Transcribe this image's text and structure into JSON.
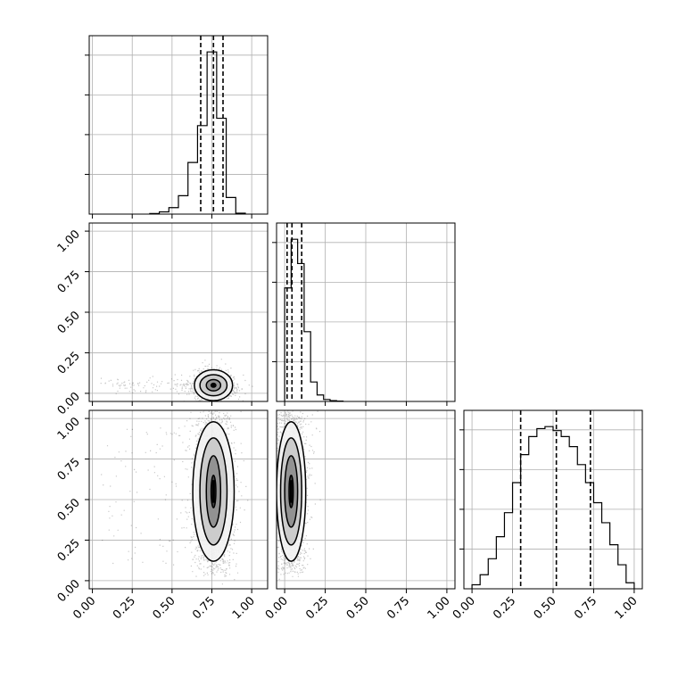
{
  "chart_data": {
    "type": "corner",
    "parameters": [
      "",
      "",
      ""
    ],
    "axis_ticks": [
      0.0,
      0.25,
      0.5,
      0.75,
      1.0
    ],
    "tick_labels": [
      "0.00",
      "0.25",
      "0.50",
      "0.75",
      "1.00"
    ],
    "grid": true,
    "histogram_style": "step",
    "quantiles": [
      0.16,
      0.5,
      0.84
    ],
    "diagonal": [
      {
        "param_index": 0,
        "range": [
          -0.02,
          1.1
        ],
        "quantile_values": [
          0.68,
          0.76,
          0.82
        ],
        "bin_edges": [
          0.36,
          0.42,
          0.48,
          0.54,
          0.6,
          0.66,
          0.72,
          0.78,
          0.84,
          0.9,
          0.96
        ],
        "counts": [
          0.3,
          1.2,
          3.5,
          10,
          28,
          48,
          88,
          52,
          9,
          0.5
        ]
      },
      {
        "param_index": 1,
        "range": [
          -0.05,
          1.05
        ],
        "quantile_values": [
          0.015,
          0.045,
          0.105
        ],
        "bin_edges": [
          0.0,
          0.04,
          0.08,
          0.12,
          0.16,
          0.2,
          0.24,
          0.28,
          0.32,
          0.36
        ],
        "counts": [
          70,
          100,
          85,
          43,
          12,
          4,
          1.2,
          0.5,
          0.2
        ]
      },
      {
        "param_index": 2,
        "range": [
          -0.05,
          1.05
        ],
        "quantile_values": [
          0.3,
          0.52,
          0.73
        ],
        "bin_edges": [
          0.0,
          0.05,
          0.1,
          0.15,
          0.2,
          0.25,
          0.3,
          0.35,
          0.4,
          0.45,
          0.5,
          0.55,
          0.6,
          0.65,
          0.7,
          0.75,
          0.8,
          0.85,
          0.9,
          0.95,
          1.0
        ],
        "counts": [
          2,
          7,
          15,
          26,
          38,
          53,
          67,
          76,
          80,
          81,
          79,
          76,
          71,
          62,
          53,
          43,
          33,
          22,
          12,
          3
        ]
      }
    ],
    "off_diagonal": [
      {
        "x_param": 0,
        "y_param": 1,
        "x_range": [
          -0.02,
          1.1
        ],
        "y_range": [
          -0.05,
          1.05
        ],
        "center": [
          0.76,
          0.05
        ],
        "spread": [
          0.055,
          0.045
        ],
        "tail_left": [
          0.05,
          0.6
        ],
        "contour_levels": [
          [
            0.12,
            0.095
          ],
          [
            0.085,
            0.065
          ],
          [
            0.045,
            0.035
          ],
          [
            0.015,
            0.012
          ]
        ]
      },
      {
        "x_param": 0,
        "y_param": 2,
        "x_range": [
          -0.02,
          1.1
        ],
        "y_range": [
          -0.05,
          1.05
        ],
        "center": [
          0.76,
          0.55
        ],
        "spread": [
          0.06,
          0.2
        ],
        "tail_left": [
          0.05,
          0.6
        ],
        "contour_levels": [
          [
            0.13,
            0.43
          ],
          [
            0.085,
            0.33
          ],
          [
            0.045,
            0.22
          ],
          [
            0.015,
            0.1
          ]
        ]
      },
      {
        "x_param": 1,
        "y_param": 2,
        "x_range": [
          -0.05,
          1.05
        ],
        "y_range": [
          -0.05,
          1.05
        ],
        "center": [
          0.04,
          0.55
        ],
        "spread": [
          0.045,
          0.2
        ],
        "tail_left": [
          0.0,
          0.0
        ],
        "contour_levels": [
          [
            0.09,
            0.43
          ],
          [
            0.065,
            0.33
          ],
          [
            0.04,
            0.22
          ],
          [
            0.013,
            0.1
          ]
        ]
      }
    ]
  }
}
